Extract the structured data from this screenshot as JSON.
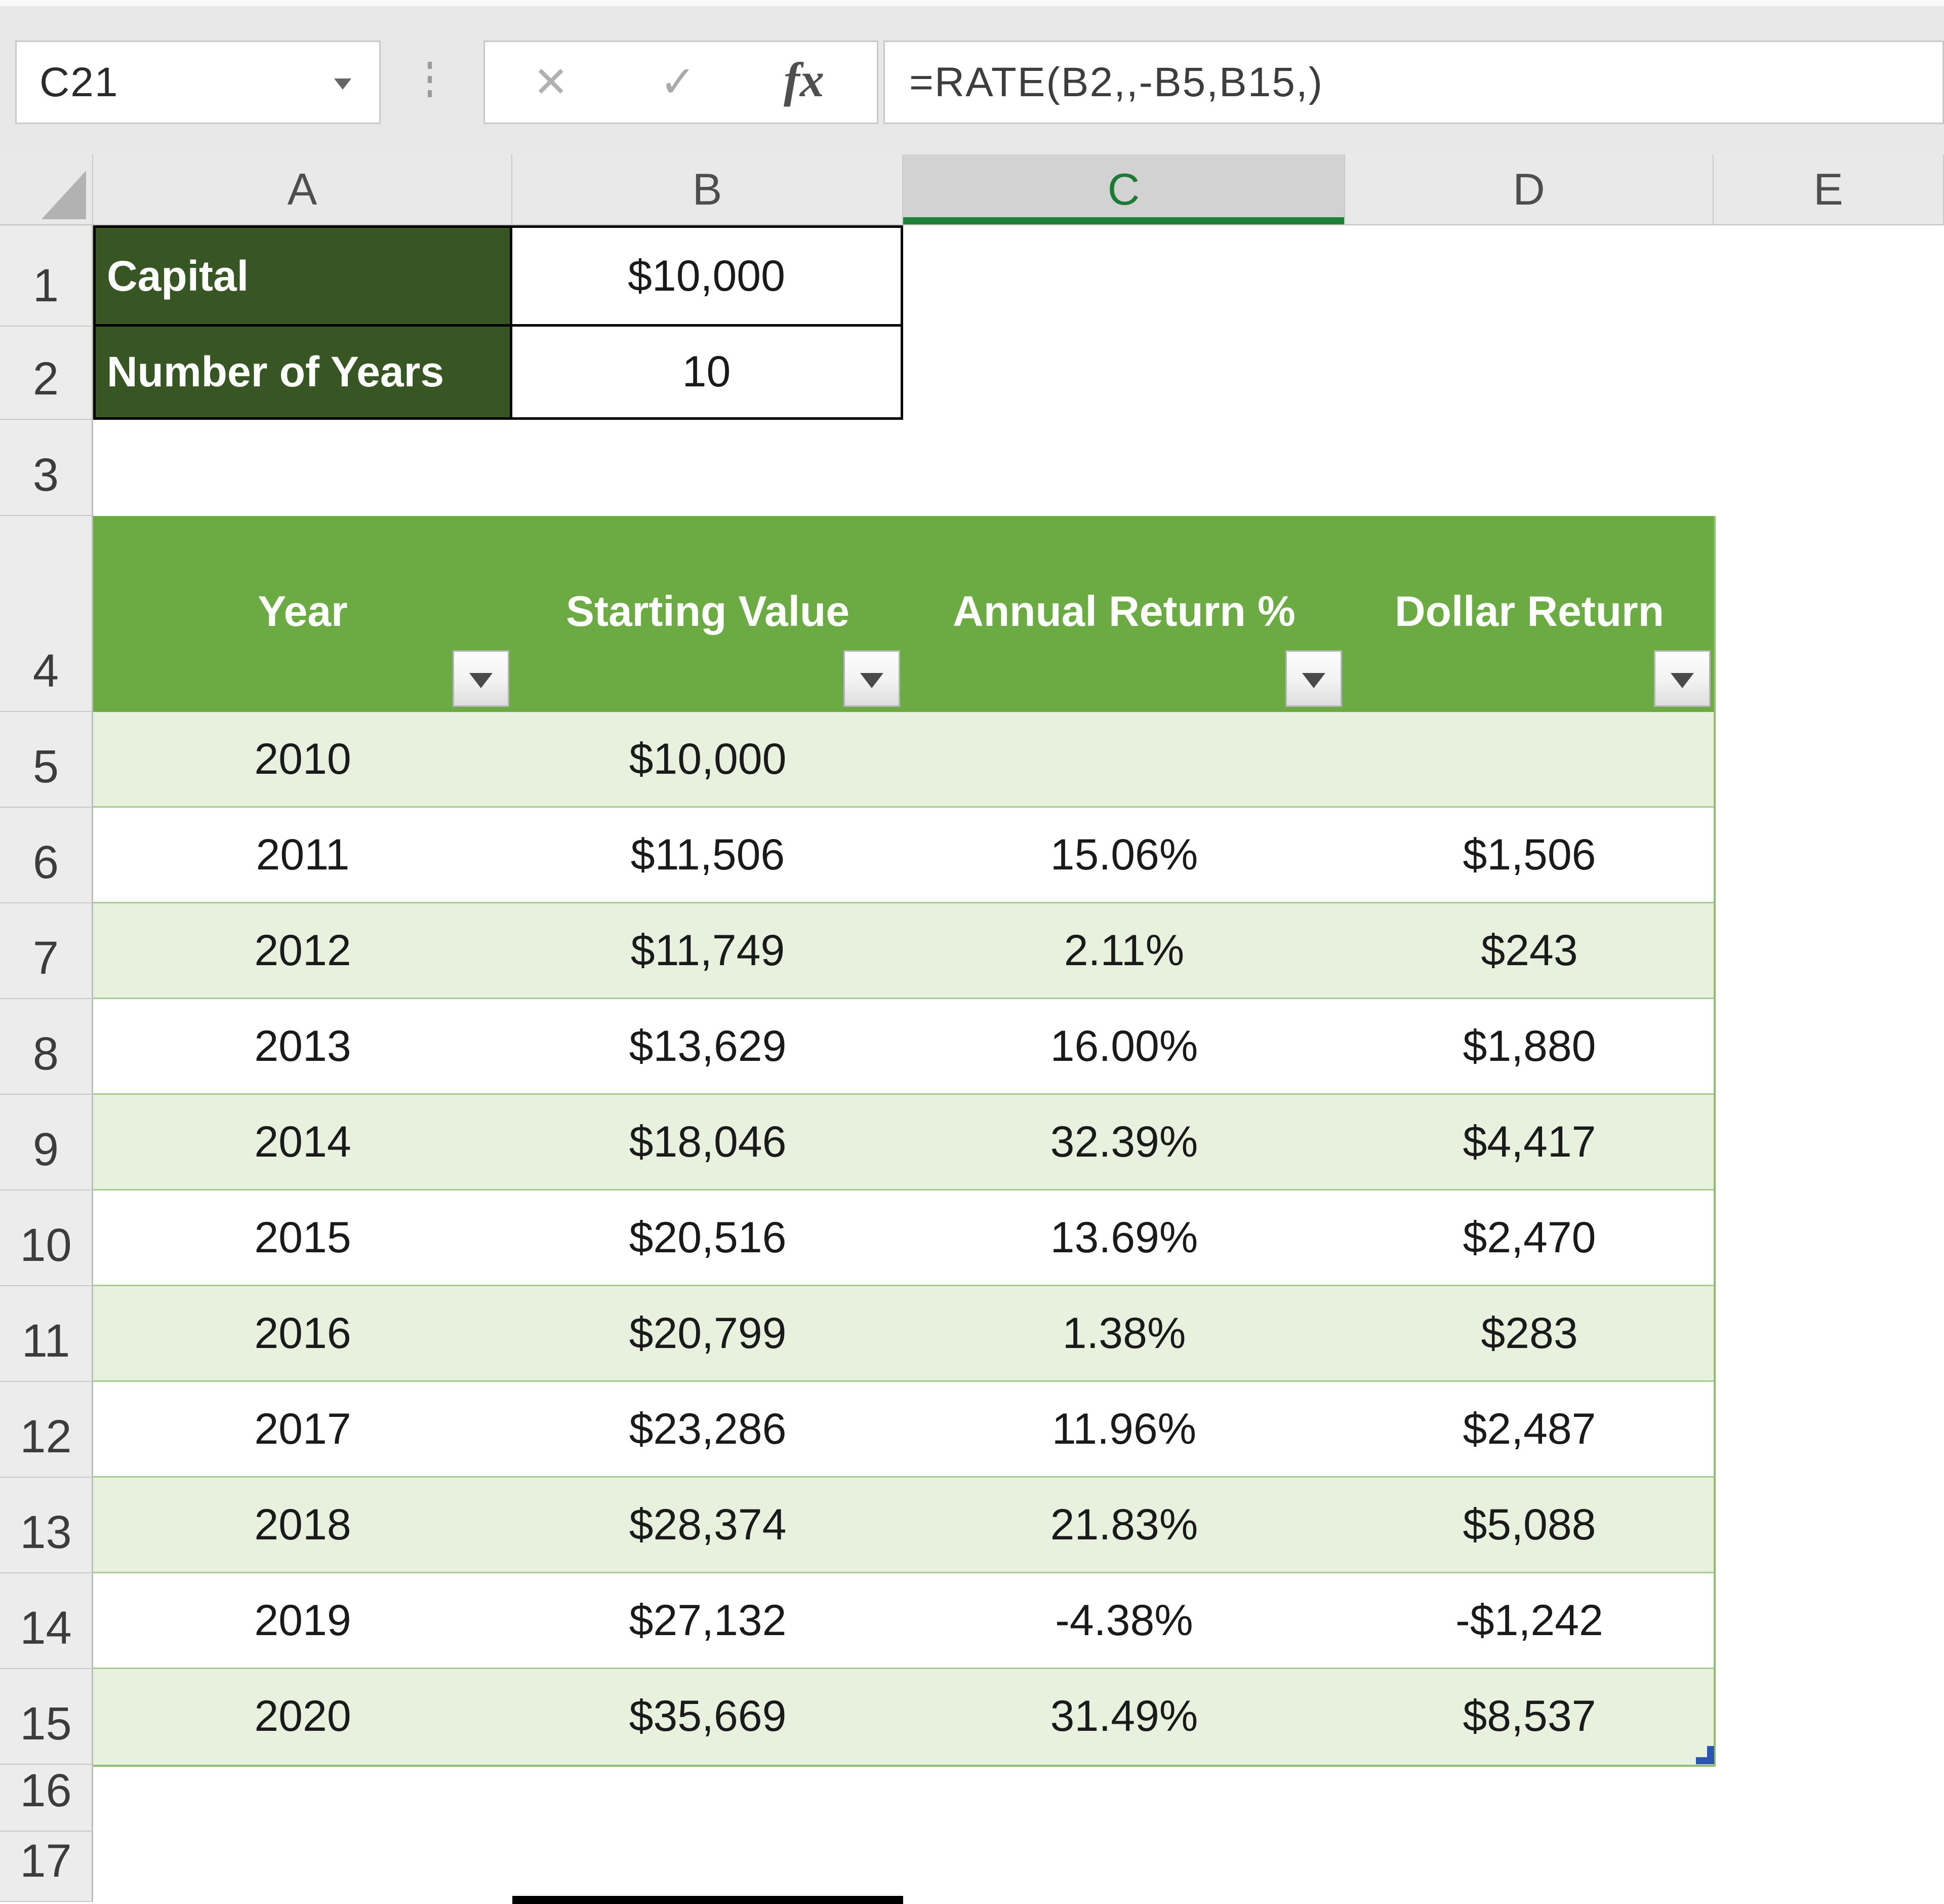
{
  "colors": {
    "dark_green_fill": "#375623",
    "table_header_green": "#6cab44",
    "band_green": "#e7f1de",
    "band_separator_green": "#a9cc8f",
    "table_edge_green": "#8ebe72",
    "selected_col_underline_green": "#1e8138",
    "selected_col_text_green": "#1b7a36",
    "chrome_gray": "#e8e8e8",
    "header_gray": "#e9e9e9",
    "selected_header_gray": "#d2d2d2",
    "resize_handle_blue": "#2c55b2",
    "border_black": "#000000"
  },
  "chrome": {
    "name_box": "C21",
    "formula": "=RATE(B2,,-B5,B15,)",
    "cancel_icon": "✕",
    "enter_icon": "✓",
    "fx_label": "fx"
  },
  "grid": {
    "column_letters": [
      "A",
      "B",
      "C",
      "D",
      "E"
    ],
    "selected_column": "C",
    "row_numbers": [
      "1",
      "2",
      "3",
      "4",
      "5",
      "6",
      "7",
      "8",
      "9",
      "10",
      "11",
      "12",
      "13",
      "14",
      "15",
      "16",
      "17"
    ]
  },
  "input_block": {
    "rows": [
      {
        "label": "Capital",
        "value": "$10,000"
      },
      {
        "label": "Number of Years",
        "value": "10"
      }
    ]
  },
  "table": {
    "headers": [
      "Year",
      "Starting Value",
      "Annual Return %",
      "Dollar Return"
    ],
    "rows": [
      [
        "2010",
        "$10,000",
        "",
        ""
      ],
      [
        "2011",
        "$11,506",
        "15.06%",
        "$1,506"
      ],
      [
        "2012",
        "$11,749",
        "2.11%",
        "$243"
      ],
      [
        "2013",
        "$13,629",
        "16.00%",
        "$1,880"
      ],
      [
        "2014",
        "$18,046",
        "32.39%",
        "$4,417"
      ],
      [
        "2015",
        "$20,516",
        "13.69%",
        "$2,470"
      ],
      [
        "2016",
        "$20,799",
        "1.38%",
        "$283"
      ],
      [
        "2017",
        "$23,286",
        "11.96%",
        "$2,487"
      ],
      [
        "2018",
        "$28,374",
        "21.83%",
        "$5,088"
      ],
      [
        "2019",
        "$27,132",
        "-4.38%",
        "-$1,242"
      ],
      [
        "2020",
        "$35,669",
        "31.49%",
        "$8,537"
      ]
    ]
  },
  "chart_data": {
    "type": "table",
    "title": "Annual portfolio returns 2010-2020 (RATE function example)",
    "categories": [
      "2010",
      "2011",
      "2012",
      "2013",
      "2014",
      "2015",
      "2016",
      "2017",
      "2018",
      "2019",
      "2020"
    ],
    "series": [
      {
        "name": "Starting Value",
        "values": [
          10000,
          11506,
          11749,
          13629,
          18046,
          20516,
          20799,
          23286,
          28374,
          27132,
          35669
        ]
      },
      {
        "name": "Annual Return %",
        "values": [
          null,
          15.06,
          2.11,
          16.0,
          32.39,
          13.69,
          1.38,
          11.96,
          21.83,
          -4.38,
          31.49
        ]
      },
      {
        "name": "Dollar Return",
        "values": [
          null,
          1506,
          243,
          1880,
          4417,
          2470,
          283,
          2487,
          5088,
          -1242,
          8537
        ]
      }
    ]
  }
}
